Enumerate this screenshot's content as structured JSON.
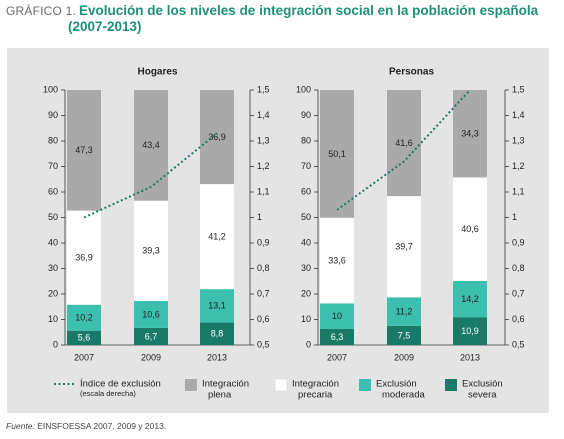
{
  "header": {
    "tag": "GRÁFICO 1.",
    "title_line1": "Evolución de los niveles de integración social en la población española",
    "title_line2": "(2007-2013)"
  },
  "source": {
    "label": "Fuente:",
    "text": " EINSFOESSA 2007, 2009 y 2013."
  },
  "colors": {
    "severa": "#1a7a68",
    "moderada": "#3dbfaf",
    "precaria": "#ffffff",
    "plena": "#a9a9a9",
    "indice": "#1a7a68",
    "background": "#e4e4e4"
  },
  "chart_data": [
    {
      "type": "bar",
      "stacked": true,
      "title": "Hogares",
      "categories": [
        "2007",
        "2009",
        "2013"
      ],
      "ylim": [
        0,
        100
      ],
      "y_ticks": [
        0,
        10,
        20,
        30,
        40,
        50,
        60,
        70,
        80,
        90,
        100
      ],
      "y2lim": [
        0.5,
        1.5
      ],
      "y2_ticks": [
        "0,5",
        "0,6",
        "0,7",
        "0,8",
        "0,9",
        "1",
        "1,1",
        "1,2",
        "1,3",
        "1,4",
        "1,5"
      ],
      "series": [
        {
          "name": "Exclusión severa",
          "key": "severa",
          "values": [
            5.6,
            6.7,
            8.8
          ],
          "labels": [
            "5,6",
            "6,7",
            "8,8"
          ]
        },
        {
          "name": "Exclusión moderada",
          "key": "moderada",
          "values": [
            10.2,
            10.6,
            13.1
          ],
          "labels": [
            "10,2",
            "10,6",
            "13,1"
          ]
        },
        {
          "name": "Integración precaria",
          "key": "precaria",
          "values": [
            36.9,
            39.3,
            41.2
          ],
          "labels": [
            "36,9",
            "39,3",
            "41,2"
          ]
        },
        {
          "name": "Integración plena",
          "key": "plena",
          "values": [
            47.3,
            43.4,
            36.9
          ],
          "labels": [
            "47,3",
            "43,4",
            "36,9"
          ]
        }
      ],
      "line": {
        "name": "Índice de exclusión",
        "values": [
          1.0,
          1.12,
          1.33
        ]
      }
    },
    {
      "type": "bar",
      "stacked": true,
      "title": "Personas",
      "categories": [
        "2007",
        "2009",
        "2013"
      ],
      "ylim": [
        0,
        100
      ],
      "y_ticks": [
        0,
        10,
        20,
        30,
        40,
        50,
        60,
        70,
        80,
        90,
        100
      ],
      "y2lim": [
        0.5,
        1.5
      ],
      "y2_ticks": [
        "0,5",
        "0,6",
        "0,7",
        "0,8",
        "0,9",
        "1",
        "1,1",
        "1,2",
        "1,3",
        "1,4",
        "1,5"
      ],
      "series": [
        {
          "name": "Exclusión severa",
          "key": "severa",
          "values": [
            6.3,
            7.5,
            10.9
          ],
          "labels": [
            "6,3",
            "7,5",
            "10,9"
          ]
        },
        {
          "name": "Exclusión moderada",
          "key": "moderada",
          "values": [
            10.0,
            11.2,
            14.2
          ],
          "labels": [
            "10",
            "11,2",
            "14,2"
          ]
        },
        {
          "name": "Integración precaria",
          "key": "precaria",
          "values": [
            33.6,
            39.7,
            40.6
          ],
          "labels": [
            "33,6",
            "39,7",
            "40,6"
          ]
        },
        {
          "name": "Integración plena",
          "key": "plena",
          "values": [
            50.1,
            41.6,
            34.3
          ],
          "labels": [
            "50,1",
            "41,6",
            "34,3"
          ]
        }
      ],
      "line": {
        "name": "Índice de exclusión",
        "values": [
          1.03,
          1.22,
          1.5
        ]
      }
    }
  ],
  "legend": [
    {
      "key": "indice",
      "kind": "line",
      "line1": "Índice de exclusión",
      "line2": "(escala derecha)"
    },
    {
      "key": "plena",
      "kind": "box",
      "line1": "Integración",
      "line2": "plena"
    },
    {
      "key": "precaria",
      "kind": "box",
      "line1": "Integración",
      "line2": "precaria"
    },
    {
      "key": "moderada",
      "kind": "box",
      "line1": "Exclusión",
      "line2": "moderada"
    },
    {
      "key": "severa",
      "kind": "box",
      "line1": "Exclusión",
      "line2": "severa"
    }
  ]
}
